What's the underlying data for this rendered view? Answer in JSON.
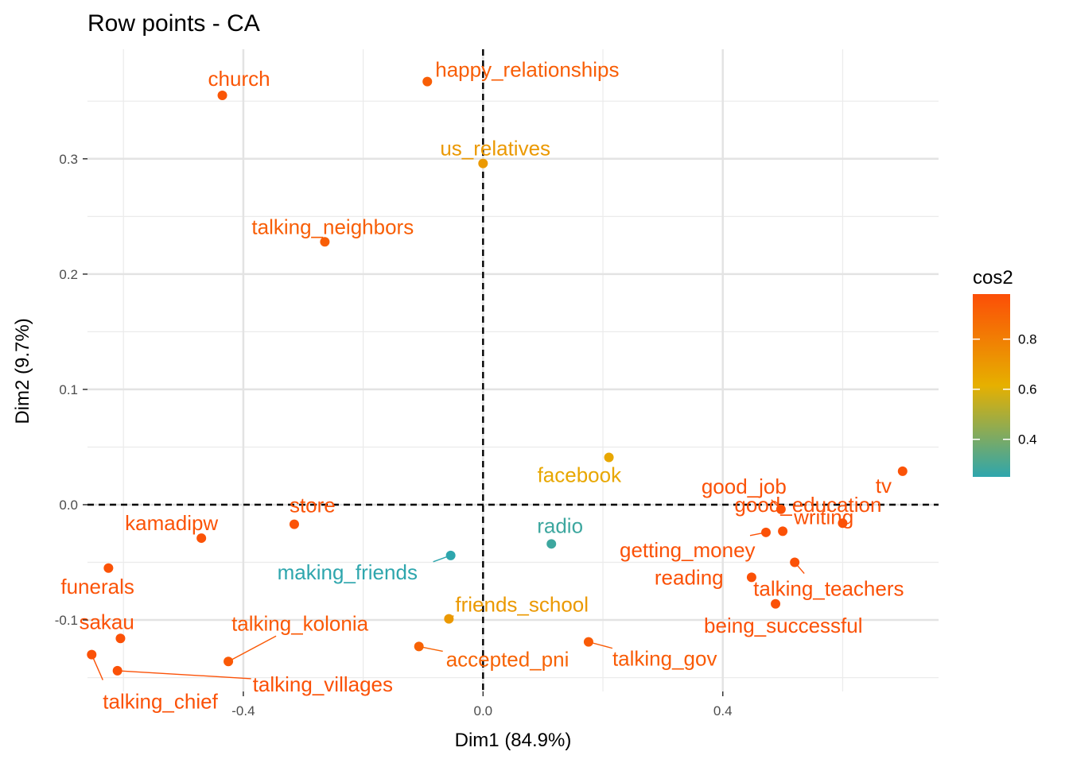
{
  "chart_data": {
    "type": "scatter",
    "title": "Row points - CA",
    "xlabel": "Dim1 (84.9%)",
    "ylabel": "Dim2 (9.7%)",
    "xlim": [
      -0.66,
      0.76
    ],
    "ylim": [
      -0.162,
      0.395
    ],
    "x_ticks": [
      -0.4,
      0.0,
      0.4
    ],
    "x_tick_labels": [
      "-0.4",
      "0.0",
      "0.4"
    ],
    "y_ticks": [
      -0.1,
      0.0,
      0.1,
      0.2,
      0.3
    ],
    "y_tick_labels": [
      "-0.1",
      "0.0",
      "0.1",
      "0.2",
      "0.3"
    ],
    "grid": true,
    "reference_lines": [
      0,
      0
    ],
    "color_scale": {
      "title": "cos2",
      "min": 0.25,
      "max": 0.98,
      "ticks": [
        0.4,
        0.6,
        0.8
      ],
      "tick_labels": [
        "0.4",
        "0.6",
        "0.8"
      ],
      "gradient": [
        "#2ea6ad",
        "#e6b000",
        "#fc4e07"
      ]
    },
    "legend_position": "right",
    "points": [
      {
        "name": "church",
        "x": -0.435,
        "y": 0.355,
        "cos2": 0.95
      },
      {
        "name": "happy_relationships",
        "x": -0.093,
        "y": 0.367,
        "cos2": 0.92
      },
      {
        "name": "us_relatives",
        "x": 0.0,
        "y": 0.296,
        "cos2": 0.7
      },
      {
        "name": "talking_neighbors",
        "x": -0.264,
        "y": 0.228,
        "cos2": 0.92
      },
      {
        "name": "facebook",
        "x": 0.21,
        "y": 0.041,
        "cos2": 0.65
      },
      {
        "name": "tv",
        "x": 0.7,
        "y": 0.029,
        "cos2": 0.96
      },
      {
        "name": "good_job",
        "x": 0.497,
        "y": -0.004,
        "cos2": 0.97
      },
      {
        "name": "good_education",
        "x": 0.6,
        "y": -0.016,
        "cos2": 0.97
      },
      {
        "name": "store",
        "x": -0.315,
        "y": -0.017,
        "cos2": 0.96
      },
      {
        "name": "kamadipw",
        "x": -0.47,
        "y": -0.029,
        "cos2": 0.96
      },
      {
        "name": "radio",
        "x": 0.114,
        "y": -0.034,
        "cos2": 0.28
      },
      {
        "name": "getting_money",
        "x": 0.472,
        "y": -0.024,
        "cos2": 0.97
      },
      {
        "name": "writing",
        "x": 0.5,
        "y": -0.023,
        "cos2": 0.97
      },
      {
        "name": "making_friends",
        "x": -0.054,
        "y": -0.044,
        "cos2": 0.25
      },
      {
        "name": "talking_teachers",
        "x": 0.52,
        "y": -0.05,
        "cos2": 0.97
      },
      {
        "name": "funerals",
        "x": -0.625,
        "y": -0.055,
        "cos2": 0.96
      },
      {
        "name": "reading",
        "x": 0.448,
        "y": -0.063,
        "cos2": 0.97
      },
      {
        "name": "being_successful",
        "x": 0.488,
        "y": -0.086,
        "cos2": 0.97
      },
      {
        "name": "friends_school",
        "x": -0.057,
        "y": -0.099,
        "cos2": 0.7
      },
      {
        "name": "sakau",
        "x": -0.605,
        "y": -0.116,
        "cos2": 0.97
      },
      {
        "name": "talking_kolonia",
        "x": -0.425,
        "y": -0.136,
        "cos2": 0.94
      },
      {
        "name": "accepted_pni",
        "x": -0.107,
        "y": -0.123,
        "cos2": 0.9
      },
      {
        "name": "talking_gov",
        "x": 0.176,
        "y": -0.119,
        "cos2": 0.93
      },
      {
        "name": "talking_chief",
        "x": -0.653,
        "y": -0.13,
        "cos2": 0.97
      },
      {
        "name": "talking_villages",
        "x": -0.61,
        "y": -0.144,
        "cos2": 0.97
      }
    ]
  }
}
